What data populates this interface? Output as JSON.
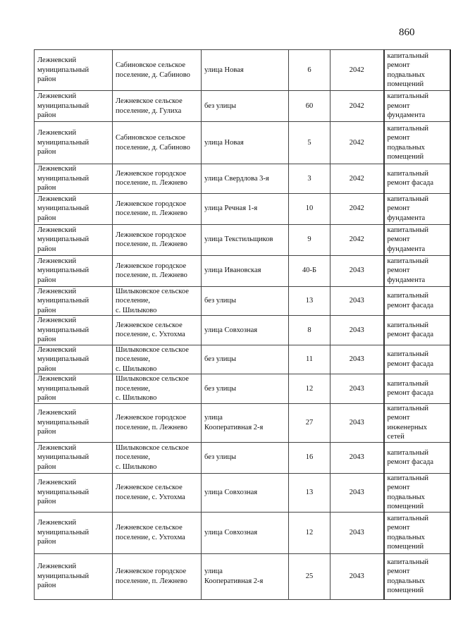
{
  "page_number": "860",
  "rows": [
    {
      "district": "Лежневский\nмуниципальный\nрайон",
      "settlement": "Сабиновское сельское\nпоселение, д. Сабиново",
      "street": "улица Новая",
      "house": "6",
      "year": "2042",
      "work": "капитальный\nремонт\nподвальных\nпомещений"
    },
    {
      "district": "Лежневский\nмуниципальный\nрайон",
      "settlement": "Лежневское сельское\nпоселение, д. Гулиха",
      "street": "без улицы",
      "house": "60",
      "year": "2042",
      "work": "капитальный\nремонт\nфундамента"
    },
    {
      "district": "Лежневский\nмуниципальный\nрайон",
      "settlement": "Сабиновское сельское\nпоселение, д. Сабиново",
      "street": "улица Новая",
      "house": "5",
      "year": "2042",
      "work": "капитальный\nремонт\nподвальных\nпомещений"
    },
    {
      "district": "Лежневский\nмуниципальный\nрайон",
      "settlement": "Лежневское городское\nпоселение, п. Лежнево",
      "street": "улица Свердлова 3-я",
      "house": "3",
      "year": "2042",
      "work": "капитальный\nремонт фасада"
    },
    {
      "district": "Лежневский\nмуниципальный\nрайон",
      "settlement": "Лежневское городское\nпоселение, п. Лежнево",
      "street": "улица Речная 1-я",
      "house": "10",
      "year": "2042",
      "work": "капитальный\nремонт\nфундамента"
    },
    {
      "district": "Лежневский\nмуниципальный\nрайон",
      "settlement": "Лежневское городское\nпоселение, п. Лежнево",
      "street": "улица Текстильщиков",
      "house": "9",
      "year": "2042",
      "work": "капитальный\nремонт\nфундамента"
    },
    {
      "district": "Лежневский\nмуниципальный\nрайон",
      "settlement": "Лежневское городское\nпоселение, п. Лежнево",
      "street": "улица Ивановская",
      "house": "40-Б",
      "year": "2043",
      "work": "капитальный\nремонт\nфундамента"
    },
    {
      "district": "Лежневский\nмуниципальный\nрайон",
      "settlement": "Шилыковское сельское\nпоселение,\nс. Шилыково",
      "street": "без улицы",
      "house": "13",
      "year": "2043",
      "work": "капитальный\nремонт фасада"
    },
    {
      "district": "Лежневский\nмуниципальный\nрайон",
      "settlement": "Лежневское сельское\nпоселение, с. Ухтохма",
      "street": "улица Совхозная",
      "house": "8",
      "year": "2043",
      "work": "капитальный\nремонт фасада"
    },
    {
      "district": "Лежневский\nмуниципальный\nрайон",
      "settlement": "Шилыковское сельское\nпоселение,\nс. Шилыково",
      "street": "без улицы",
      "house": "11",
      "year": "2043",
      "work": "капитальный\nремонт фасада"
    },
    {
      "district": "Лежневский\nмуниципальный\nрайон",
      "settlement": "Шилыковское сельское\nпоселение,\nс. Шилыково",
      "street": "без улицы",
      "house": "12",
      "year": "2043",
      "work": "капитальный\nремонт фасада"
    },
    {
      "district": "Лежневский\nмуниципальный\nрайон",
      "settlement": "Лежневское городское\nпоселение, п. Лежнево",
      "street": "улица\nКооперативная 2-я",
      "house": "27",
      "year": "2043",
      "work": "капитальный\nремонт\nинженерных\nсетей"
    },
    {
      "district": "Лежневский\nмуниципальный\nрайон",
      "settlement": "Шилыковское сельское\nпоселение,\nс. Шилыково",
      "street": "без улицы",
      "house": "16",
      "year": "2043",
      "work": "капитальный\nремонт фасада"
    },
    {
      "district": "Лежневский\nмуниципальный\nрайон",
      "settlement": "Лежневское сельское\nпоселение, с. Ухтохма",
      "street": "улица Совхозная",
      "house": "13",
      "year": "2043",
      "work": "капитальный\nремонт\nподвальных\nпомещений"
    },
    {
      "district": "Лежневский\nмуниципальный\nрайон",
      "settlement": "Лежневское сельское\nпоселение, с. Ухтохма",
      "street": "улица Совхозная",
      "house": "12",
      "year": "2043",
      "work": "капитальный\nремонт\nподвальных\nпомещений"
    },
    {
      "district": "Лежневский\nмуниципальный\nрайон",
      "settlement": "Лежневское городское\nпоселение, п. Лежнево",
      "street": "улица\nКооперативная 2-я",
      "house": "25",
      "year": "2043",
      "work": "капитальный\nремонт\nподвальных\nпомещений"
    }
  ]
}
